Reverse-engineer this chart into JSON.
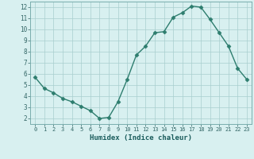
{
  "x": [
    0,
    1,
    2,
    3,
    4,
    5,
    6,
    7,
    8,
    9,
    10,
    11,
    12,
    13,
    14,
    15,
    16,
    17,
    18,
    19,
    20,
    21,
    22,
    23
  ],
  "y": [
    5.7,
    4.7,
    4.3,
    3.8,
    3.5,
    3.1,
    2.7,
    2.0,
    2.1,
    3.5,
    5.5,
    7.7,
    8.5,
    9.7,
    9.8,
    11.1,
    11.5,
    12.1,
    12.0,
    10.9,
    9.7,
    8.5,
    6.5,
    5.5
  ],
  "xlabel": "Humidex (Indice chaleur)",
  "xlim": [
    -0.5,
    23.5
  ],
  "ylim": [
    1.5,
    12.5
  ],
  "yticks": [
    2,
    3,
    4,
    5,
    6,
    7,
    8,
    9,
    10,
    11,
    12
  ],
  "xticks": [
    0,
    1,
    2,
    3,
    4,
    5,
    6,
    7,
    8,
    9,
    10,
    11,
    12,
    13,
    14,
    15,
    16,
    17,
    18,
    19,
    20,
    21,
    22,
    23
  ],
  "line_color": "#2d7d6e",
  "marker": "D",
  "marker_size": 2.5,
  "bg_color": "#d8f0f0",
  "grid_color": "#a8cece",
  "tick_label_color": "#336666",
  "axis_label_color": "#1a5c5c"
}
